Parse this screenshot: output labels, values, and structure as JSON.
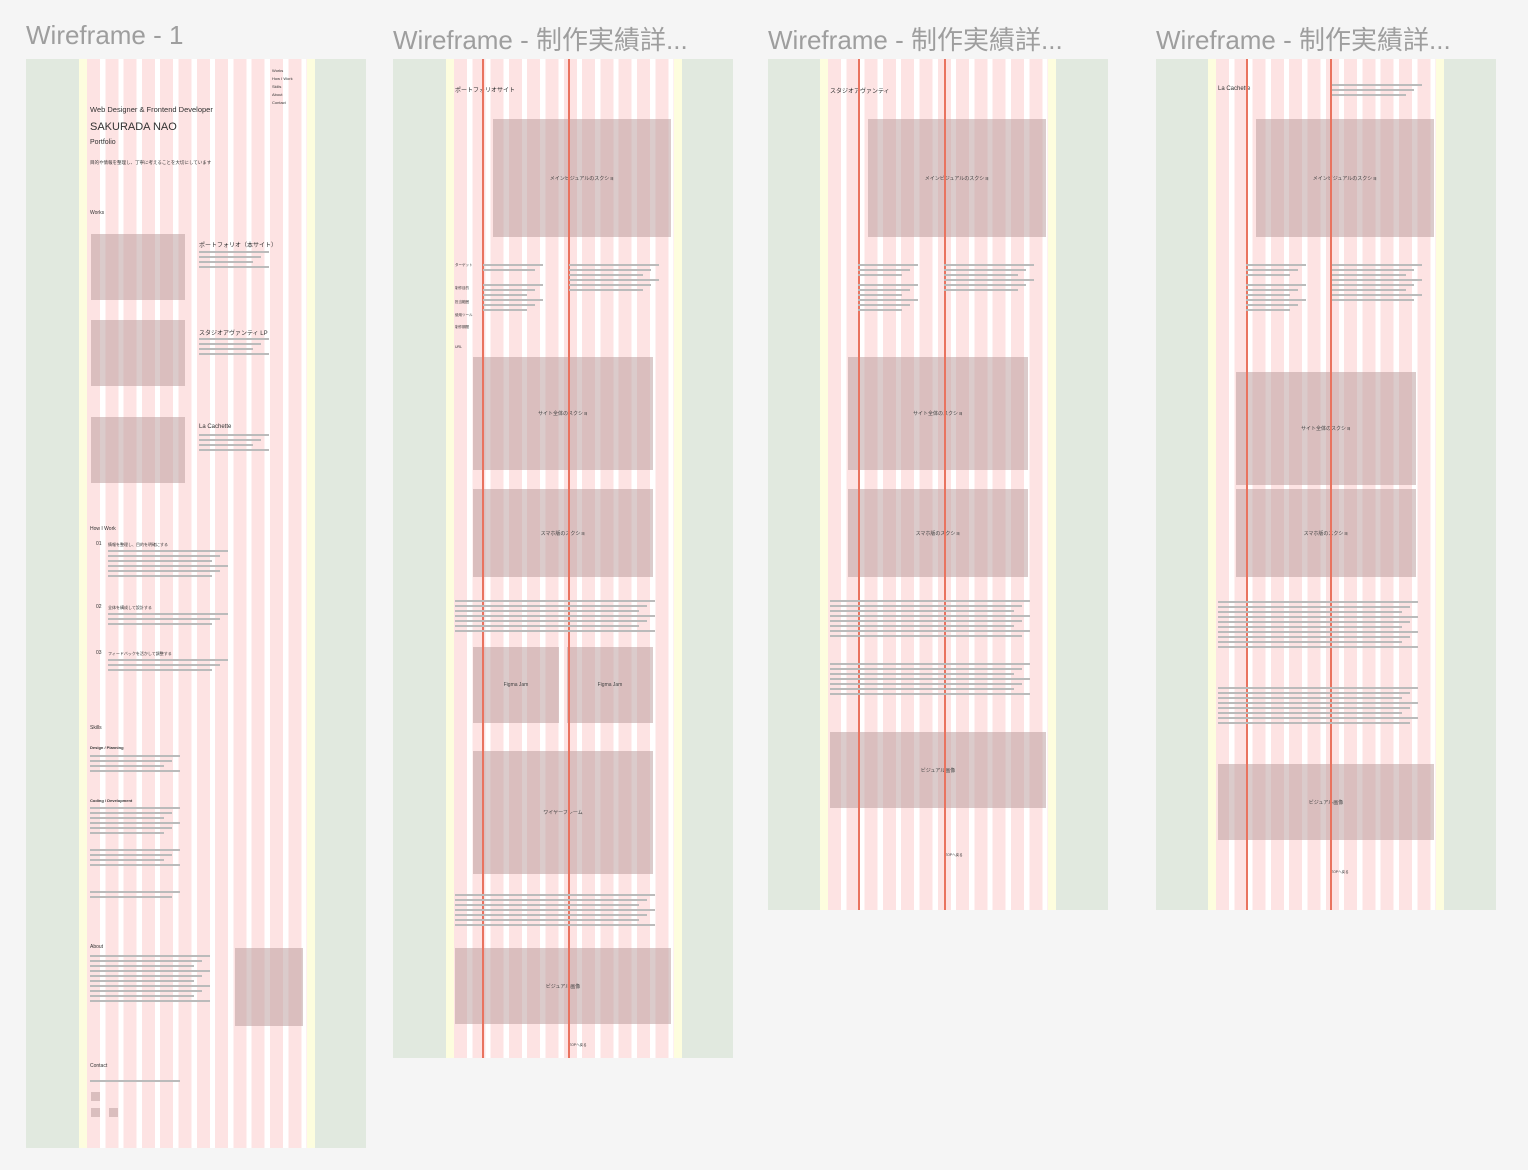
{
  "canvas": {
    "frames": [
      {
        "title": "Wireframe - 1",
        "nav": [
          "Works",
          "How I Work",
          "Skills",
          "About",
          "Contact"
        ],
        "role": "Web Designer & Frontend Developer",
        "name": "SAKURADA NAO",
        "subtitle": "Portfolio",
        "tagline": "目的や情報を整理し、丁寧に考えることを大切にしています",
        "works_heading": "Works",
        "works": [
          "ポートフォリオ（本サイト）",
          "スタジオアヴァンティ LP",
          "La Cachette"
        ],
        "how_heading": "How I Work",
        "steps": [
          {
            "number": "01",
            "heading": "情報を整理し、目的を明確にする"
          },
          {
            "number": "02",
            "heading": "全体を構成して設計する"
          },
          {
            "number": "03",
            "heading": "フィードバックを活かして調整する"
          }
        ],
        "skills_heading": "Skills",
        "skill_groups": [
          "Design / Planning",
          "Coding / Development"
        ],
        "about_heading": "About",
        "contact_heading": "Contact"
      },
      {
        "title": "Wireframe - 制作実績詳...",
        "heading": "ポートフォリオサイト",
        "labels": [
          "ターゲット",
          "制作目的",
          "担当範囲",
          "使用ツール",
          "制作期間",
          "URL"
        ],
        "boxes": [
          "メインビジュアルのスクショ",
          "サイト全体のスクショ",
          "スマホ版のスクショ",
          "Figma Jam",
          "Figma Jam",
          "ワイヤーフレーム",
          "ビジュアル画像"
        ],
        "footer": "TOPへ戻る"
      },
      {
        "title": "Wireframe - 制作実績詳...",
        "heading": "スタジオアヴァンティ",
        "boxes": [
          "メインビジュアルのスクショ",
          "サイト全体のスクショ",
          "スマホ版のスクショ",
          "ビジュアル画像"
        ],
        "footer": "TOPへ戻る"
      },
      {
        "title": "Wireframe - 制作実績詳...",
        "heading": "La Cachette",
        "boxes": [
          "メインビジュアルのスクショ",
          "サイト全体のスクショ",
          "スマホ版のスクショ",
          "ビジュアル画像"
        ],
        "footer": "TOPへ戻る"
      }
    ]
  }
}
